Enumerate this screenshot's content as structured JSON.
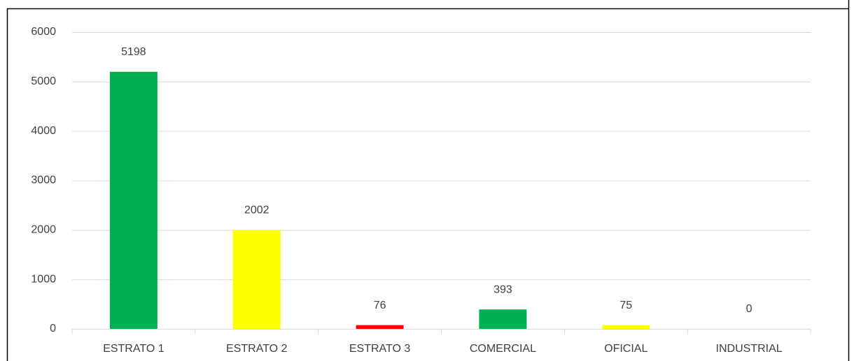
{
  "chart_data": {
    "type": "bar",
    "categories": [
      "ESTRATO 1",
      "ESTRATO 2",
      "ESTRATO 3",
      "COMERCIAL",
      "OFICIAL",
      "INDUSTRIAL"
    ],
    "values": [
      5198,
      2002,
      76,
      393,
      75,
      0
    ],
    "colors": [
      "#00b050",
      "#ffff00",
      "#ff0000",
      "#00b050",
      "#ffff00",
      "#00b050"
    ],
    "ylim": [
      0,
      6000
    ],
    "yticks": [
      0,
      1000,
      2000,
      3000,
      4000,
      5000,
      6000
    ],
    "grid": true
  }
}
